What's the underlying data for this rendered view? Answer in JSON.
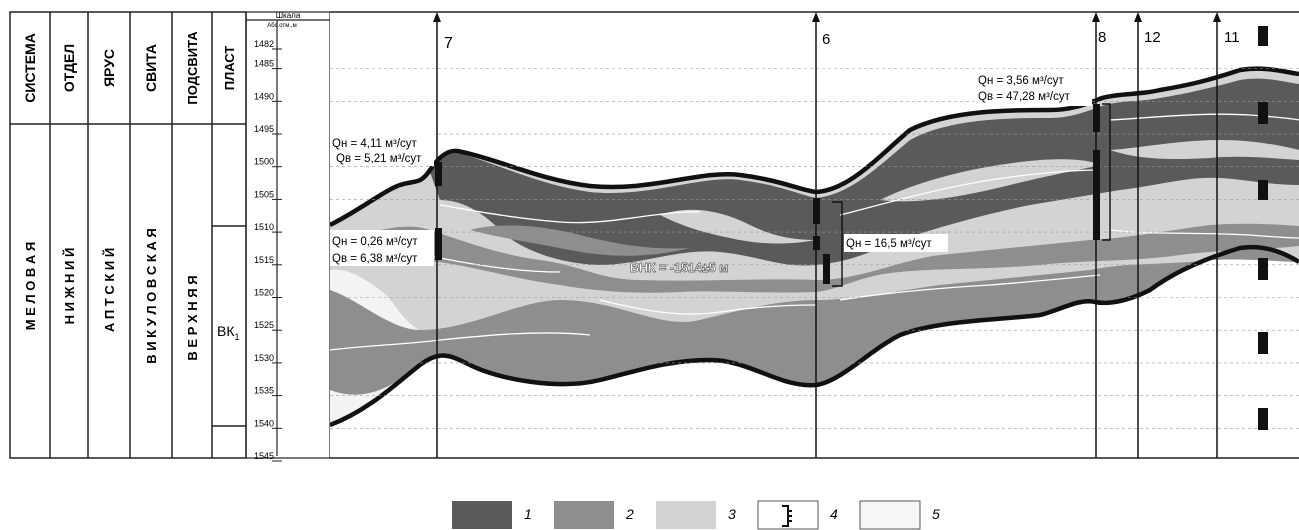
{
  "header": {
    "system": "СИСТЕМА",
    "department": "ОТДЕЛ",
    "stage": "ЯРУС",
    "suite": "СВИТА",
    "subsuite": "ПОДСВИТА",
    "layer": "ПЛАСТ",
    "scale": "Шкала",
    "abs_mark": "Абс.отм.,м"
  },
  "strat": {
    "system": "М Е Л О В А Я",
    "department": "Н И Ж Н И Й",
    "stage": "А П Т С К И Й",
    "suite": "В И К У Л О В С К А Я",
    "subsuite": "В Е Р Х Н Я Я",
    "layer_main": "ВК",
    "layer_sub": "1"
  },
  "depth_ticks": [
    "1482",
    "1485",
    "1490",
    "1495",
    "1500",
    "1505",
    "1510",
    "1515",
    "1520",
    "1525",
    "1530",
    "1535",
    "1540",
    "1545"
  ],
  "wells": [
    {
      "num": "7"
    },
    {
      "num": "6"
    },
    {
      "num": "8"
    },
    {
      "num": "12"
    },
    {
      "num": "11"
    }
  ],
  "annotations": {
    "w7_top_qn": "Qн = 4,11 м³/сут",
    "w7_top_qv": "Qв = 5,21 м³/сут",
    "w7_bot_qn": "Qн = 0,26 м³/сут",
    "w7_bot_qv": "Qв = 6,38 м³/сут",
    "w6_qn": "Qн = 16,5 м³/сут",
    "w8_qn": "Qн = 3,56 м³/сут",
    "w8_qv": "Qв = 47,28 м³/сут",
    "vnk": "ВНК = -1514±5 м"
  },
  "legend": [
    {
      "num": "1",
      "color": "#5a5a5a"
    },
    {
      "num": "2",
      "color": "#8e8e8e"
    },
    {
      "num": "3",
      "color": "#d3d3d3"
    },
    {
      "num": "4",
      "color": "#ffffff"
    },
    {
      "num": "5",
      "color": "#f6f6f6"
    }
  ]
}
